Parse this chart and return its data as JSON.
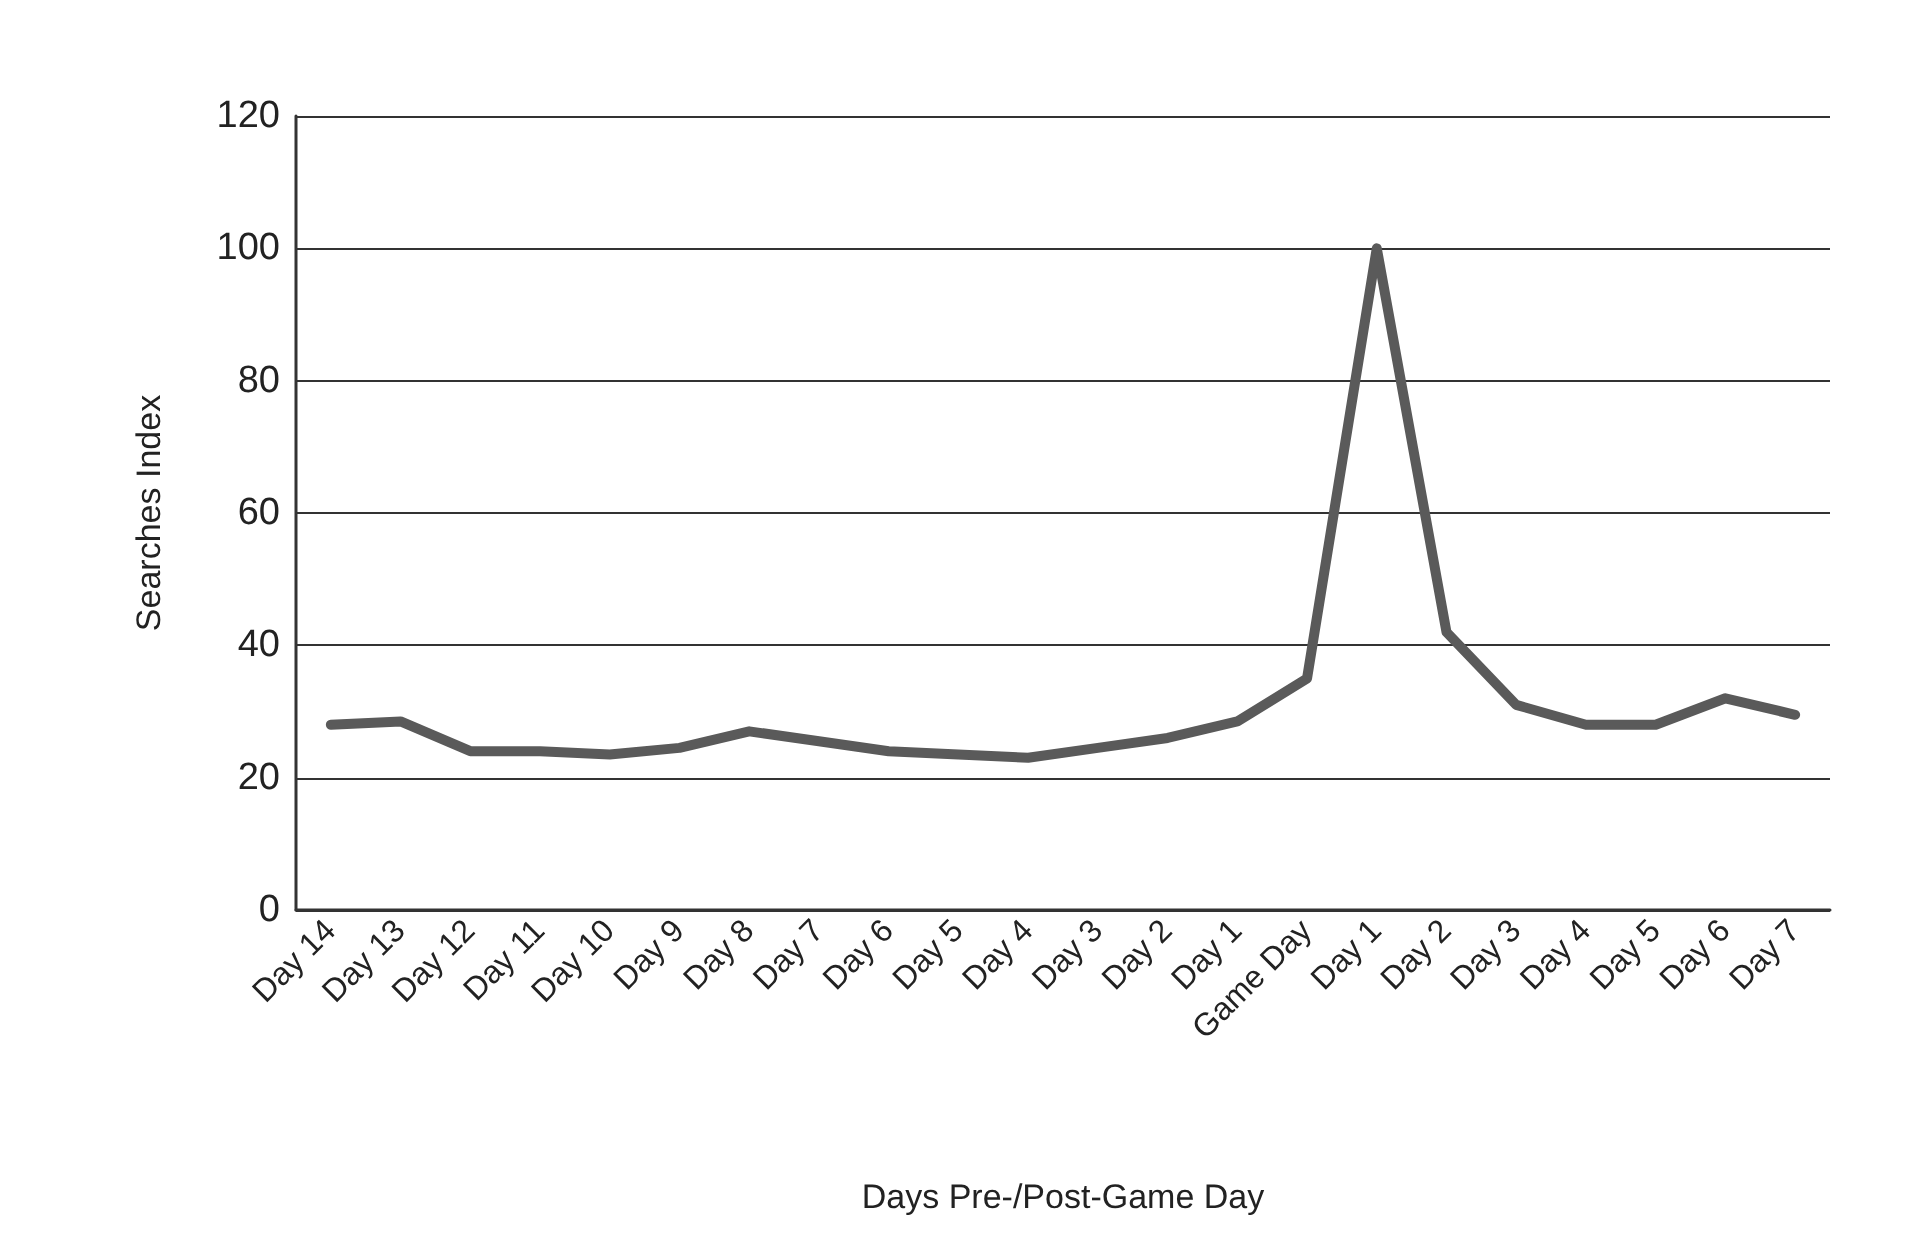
{
  "chart_data": {
    "type": "line",
    "xlabel": "Days Pre-/Post-Game Day",
    "ylabel": "Searches Index",
    "categories": [
      "Day 14",
      "Day 13",
      "Day 12",
      "Day 11",
      "Day 10",
      "Day 9",
      "Day 8",
      "Day 7",
      "Day 6",
      "Day 5",
      "Day 4",
      "Day 3",
      "Day 2",
      "Day 1",
      "Game Day",
      "Day 1",
      "Day 2",
      "Day 3",
      "Day 4",
      "Day 5",
      "Day 6",
      "Day 7"
    ],
    "series": [
      {
        "color": "#5a5a5a",
        "values": [
          28,
          28.5,
          24,
          24,
          23.5,
          24.5,
          27,
          25.5,
          24,
          23.5,
          23,
          24.5,
          26,
          28.5,
          35,
          100,
          42,
          31,
          28,
          28,
          32,
          29.5
        ]
      }
    ],
    "ylim": [
      0,
      120
    ],
    "yticks": [
      0,
      20,
      40,
      60,
      80,
      100,
      120
    ],
    "grid": "y",
    "marker": "none",
    "line_style": "solid"
  }
}
